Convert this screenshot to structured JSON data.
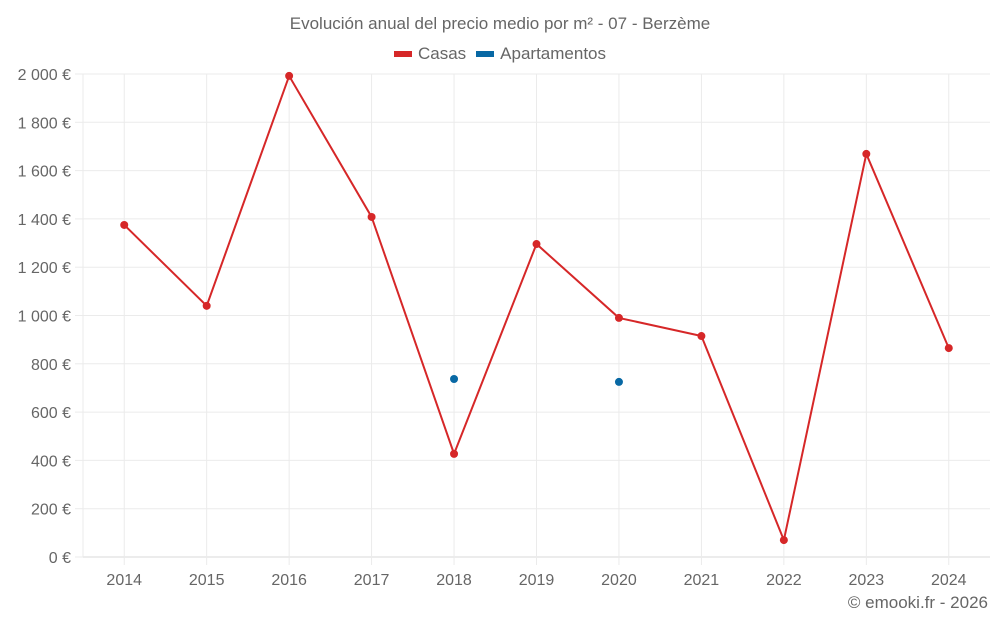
{
  "title": "Evolución anual del precio medio por m² - 07 - Berzème",
  "legend": [
    {
      "label": "Casas",
      "color": "#d62728"
    },
    {
      "label": "Apartamentos",
      "color": "#0868a4"
    }
  ],
  "footer": "© emooki.fr - 2026",
  "chart_data": {
    "type": "line",
    "title": "Evolución anual del precio medio por m² - 07 - Berzème",
    "xlabel": "",
    "ylabel": "",
    "categories": [
      "2014",
      "2015",
      "2016",
      "2017",
      "2018",
      "2019",
      "2020",
      "2021",
      "2022",
      "2023",
      "2024"
    ],
    "series": [
      {
        "name": "Casas",
        "color": "#d62728",
        "values": [
          1375,
          1040,
          1992,
          1408,
          427,
          1296,
          990,
          915,
          70,
          1669,
          865
        ]
      },
      {
        "name": "Apartamentos",
        "color": "#0868a4",
        "values": [
          null,
          null,
          null,
          null,
          737,
          null,
          725,
          null,
          null,
          null,
          null
        ]
      }
    ],
    "ylim": [
      0,
      2000
    ],
    "yticks": [
      0,
      200,
      400,
      600,
      800,
      1000,
      1200,
      1400,
      1600,
      1800,
      2000
    ],
    "ytick_labels": [
      "0 €",
      "200 €",
      "400 €",
      "600 €",
      "800 €",
      "1 000 €",
      "1 200 €",
      "1 400 €",
      "1 600 €",
      "1 800 €",
      "2 000 €"
    ],
    "grid": true,
    "legend_position": "top"
  }
}
